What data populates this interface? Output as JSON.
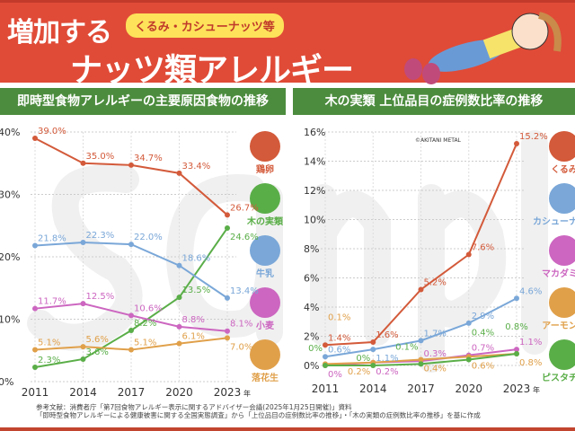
{
  "header": {
    "title_line1": "増加する",
    "title_line2": "ナッツ類アレルギー",
    "bubble": "くるみ・カシューナッツ等"
  },
  "watermark": "sample",
  "credit": "©AKITANI METAL",
  "footer": {
    "line1": "参考文献：消費者庁「第7回食物アレルギー表示に関するアドバイザー会議(2025年1月25日開催)」資料",
    "line2": "「即時型食物アレルギーによる健康被害に関する全国実態調査」から「上位品目の症例数比率の推移」・「木の実類の症例数比率の推移」を基に作成"
  },
  "chart_data": [
    {
      "type": "line",
      "title": "即時型食物アレルギーの主要原因食物の推移",
      "categories": [
        "2011",
        "2014",
        "2017",
        "2020",
        "2023"
      ],
      "x_unit": "年",
      "ylim": [
        0,
        40
      ],
      "yticks": [
        "0%",
        "10%",
        "20%",
        "30%",
        "40%"
      ],
      "grid": true,
      "series": [
        {
          "name": "鶏卵",
          "color": "#d35a3a",
          "icon": "egg-icon",
          "values": [
            39.0,
            35.0,
            34.7,
            33.4,
            26.7
          ]
        },
        {
          "name": "木の実類",
          "color": "#5aae48",
          "icon": "nuts-icon",
          "values": [
            2.3,
            3.6,
            8.2,
            13.5,
            24.6
          ]
        },
        {
          "name": "牛乳",
          "color": "#7aa7d8",
          "icon": "milk-icon",
          "values": [
            21.8,
            22.3,
            22.0,
            18.6,
            13.4
          ]
        },
        {
          "name": "小麦",
          "color": "#cc66c0",
          "icon": "wheat-icon",
          "values": [
            11.7,
            12.5,
            10.6,
            8.8,
            8.1
          ]
        },
        {
          "name": "落花生",
          "color": "#e0a04a",
          "icon": "peanut-icon",
          "values": [
            5.1,
            5.6,
            5.1,
            6.1,
            7.0
          ]
        }
      ]
    },
    {
      "type": "line",
      "title": "木の実類 上位品目の症例数比率の推移",
      "categories": [
        "2011",
        "2014",
        "2017",
        "2020",
        "2023"
      ],
      "x_unit": "年",
      "ylim": [
        0,
        16
      ],
      "yticks": [
        "0%",
        "2%",
        "4%",
        "6%",
        "8%",
        "10%",
        "12%",
        "14%",
        "16%"
      ],
      "grid": true,
      "series": [
        {
          "name": "くるみ",
          "color": "#d35a3a",
          "icon": "walnut-icon",
          "values": [
            1.4,
            1.6,
            5.2,
            7.6,
            15.2
          ]
        },
        {
          "name": "カシューナッツ",
          "color": "#7aa7d8",
          "icon": "cashew-icon",
          "values": [
            0.6,
            1.1,
            1.7,
            2.9,
            4.6
          ]
        },
        {
          "name": "マカダミア",
          "color": "#cc66c0",
          "icon": "macadamia-icon",
          "values": [
            0,
            0.2,
            0.3,
            0.7,
            1.1
          ]
        },
        {
          "name": "アーモンド",
          "color": "#e0a04a",
          "icon": "almond-icon",
          "values": [
            0.1,
            0.2,
            0.4,
            0.6,
            0.8
          ]
        },
        {
          "name": "ピスタチオ",
          "color": "#5aae48",
          "icon": "pistachio-icon",
          "values": [
            0,
            0,
            0.1,
            0.4,
            0.8
          ]
        }
      ]
    }
  ]
}
